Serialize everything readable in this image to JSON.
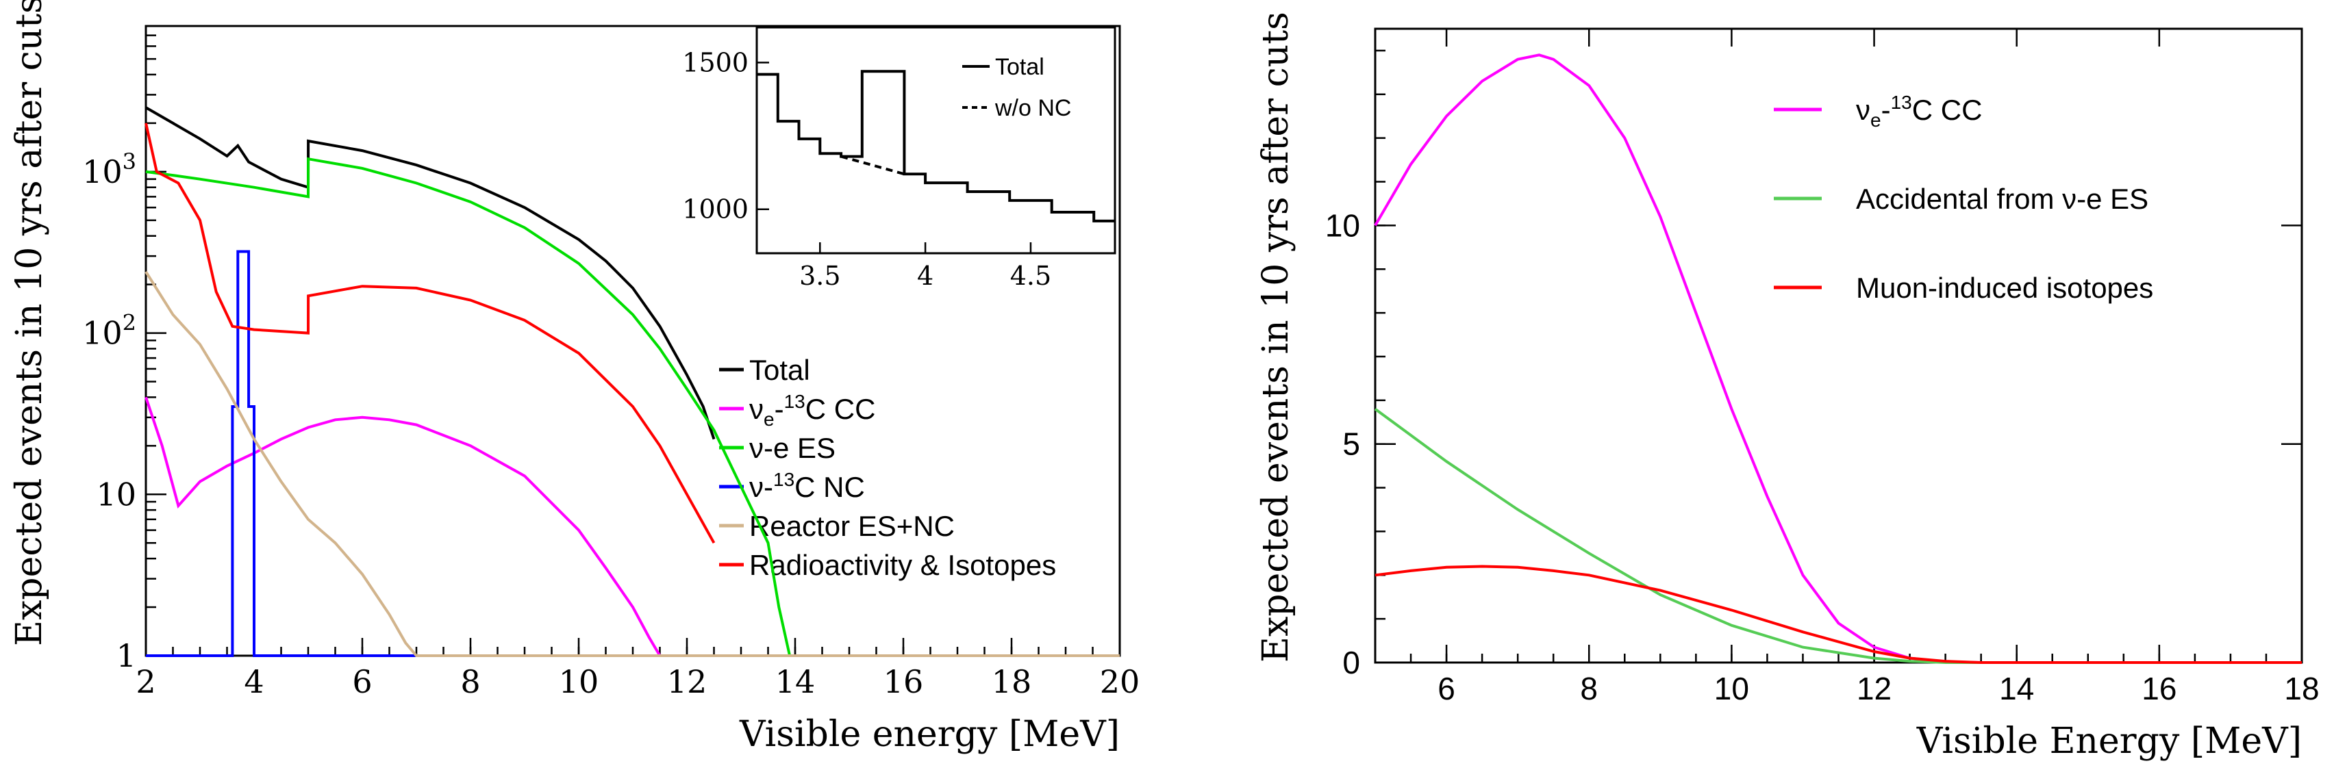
{
  "chart_data": [
    {
      "type": "line",
      "panel": "left",
      "title": "",
      "xlabel": "Visible energy [MeV]",
      "ylabel": "Expected events in 10 yrs after cuts",
      "xlim": [
        2,
        20
      ],
      "ylim": [
        1,
        8000
      ],
      "yscale": "log",
      "x_ticks": [
        2,
        4,
        6,
        8,
        10,
        12,
        14,
        16,
        18,
        20
      ],
      "y_ticks": [
        {
          "value": 1,
          "label": "1"
        },
        {
          "value": 10,
          "label": "10"
        },
        {
          "value": 100,
          "label": "10",
          "exp": "2"
        },
        {
          "value": 1000,
          "label": "10",
          "exp": "3"
        }
      ],
      "legend_position": "center-right",
      "series": [
        {
          "name": "Total",
          "color": "#000000",
          "legend": [
            "Total"
          ],
          "x": [
            2.0,
            2.5,
            3.0,
            3.5,
            3.7,
            3.9,
            4.5,
            5.0,
            5.001,
            6.0,
            7.0,
            8.0,
            9.0,
            10.0,
            10.5,
            11.0,
            11.5,
            12.0,
            12.3,
            12.5
          ],
          "y": [
            2500,
            2000,
            1600,
            1250,
            1450,
            1150,
            900,
            800,
            1550,
            1350,
            1100,
            850,
            600,
            380,
            280,
            190,
            110,
            55,
            35,
            22
          ]
        },
        {
          "name": "ve-13C CC",
          "color": "#ff00ff",
          "legend": [
            "ν",
            "e",
            "-",
            "13",
            "C CC"
          ],
          "x": [
            2.0,
            2.3,
            2.6,
            3.0,
            3.5,
            4.0,
            4.5,
            5.0,
            5.5,
            6.0,
            6.5,
            7.0,
            8.0,
            9.0,
            10.0,
            10.5,
            11.0,
            11.3,
            11.5
          ],
          "y": [
            40,
            20,
            8.5,
            12,
            15,
            18,
            22,
            26,
            29,
            30,
            29,
            27,
            20,
            13,
            6,
            3.5,
            2,
            1.3,
            1
          ]
        },
        {
          "name": "v-e ES",
          "color": "#00dd00",
          "legend": [
            "ν-e ES"
          ],
          "x": [
            2.0,
            2.5,
            3.0,
            4.0,
            5.0,
            5.001,
            6.0,
            7.0,
            8.0,
            9.0,
            10.0,
            11.0,
            11.5,
            12.0,
            12.5,
            13.5,
            13.7,
            13.9
          ],
          "y": [
            1000,
            950,
            900,
            800,
            700,
            1200,
            1050,
            850,
            650,
            450,
            270,
            130,
            80,
            45,
            25,
            5,
            2,
            1
          ]
        },
        {
          "name": "v-13C NC",
          "color": "#0000ff",
          "legend": [
            "ν-",
            "13",
            "C NC"
          ],
          "x": [
            2.0,
            3.6,
            3.6,
            3.7,
            3.7,
            3.9,
            3.9,
            4.0,
            4.0,
            20.0
          ],
          "y": [
            1,
            1,
            35,
            35,
            320,
            320,
            35,
            35,
            1,
            1
          ]
        },
        {
          "name": "Reactor ES+NC",
          "color": "#d2b48c",
          "legend": [
            "Reactor ES+NC"
          ],
          "x": [
            2.0,
            2.5,
            3.0,
            3.5,
            4.0,
            4.5,
            5.0,
            5.5,
            6.0,
            6.5,
            6.8,
            7.0,
            20.0
          ],
          "y": [
            240,
            130,
            85,
            45,
            22,
            12,
            7,
            5,
            3.2,
            1.8,
            1.2,
            1,
            1
          ]
        },
        {
          "name": "Radioactivity & Isotopes",
          "color": "#ff0000",
          "legend": [
            "Radioactivity & Isotopes"
          ],
          "x": [
            2.0,
            2.2,
            2.6,
            3.0,
            3.3,
            3.6,
            4.0,
            5.0,
            5.001,
            6.0,
            7.0,
            8.0,
            9.0,
            10.0,
            11.0,
            11.5,
            12.0,
            12.5
          ],
          "y": [
            2000,
            1000,
            850,
            500,
            180,
            110,
            105,
            100,
            170,
            195,
            190,
            160,
            120,
            75,
            35,
            20,
            10,
            5
          ]
        }
      ],
      "inset": {
        "xlim": [
          3.2,
          4.9
        ],
        "ylim": [
          850,
          1620
        ],
        "x_ticks": [
          {
            "value": 3.5,
            "label": "3.5"
          },
          {
            "value": 4.0,
            "label": "4"
          },
          {
            "value": 4.5,
            "label": "4.5"
          }
        ],
        "y_ticks": [
          {
            "value": 1000,
            "label": "1000"
          },
          {
            "value": 1500,
            "label": "1500"
          }
        ],
        "legend_position": "top-right",
        "series": [
          {
            "name": "Total",
            "style": "solid",
            "x": [
              3.2,
              3.3,
              3.3,
              3.4,
              3.4,
              3.5,
              3.5,
              3.6,
              3.6,
              3.7,
              3.7,
              3.9,
              3.9,
              4.0,
              4.0,
              4.2,
              4.2,
              4.4,
              4.4,
              4.6,
              4.6,
              4.8,
              4.8,
              4.9
            ],
            "y": [
              1460,
              1460,
              1300,
              1300,
              1240,
              1240,
              1190,
              1190,
              1180,
              1180,
              1470,
              1470,
              1120,
              1120,
              1090,
              1090,
              1060,
              1060,
              1030,
              1030,
              990,
              990,
              960,
              960
            ]
          },
          {
            "name": "w/o NC",
            "style": "dashed",
            "x": [
              3.6,
              3.7,
              3.8,
              3.9
            ],
            "y": [
              1180,
              1160,
              1140,
              1120
            ]
          }
        ]
      }
    },
    {
      "type": "line",
      "panel": "right",
      "title": "",
      "xlabel": "Visible Energy [MeV]",
      "ylabel": "Expected events in 10 yrs after cuts",
      "xlim": [
        5,
        18
      ],
      "ylim": [
        0,
        14.5
      ],
      "x_ticks": [
        6,
        8,
        10,
        12,
        14,
        16,
        18
      ],
      "y_ticks": [
        0,
        5,
        10
      ],
      "legend_position": "top-right",
      "series": [
        {
          "name": "ve-13C CC",
          "color": "#ff00ff",
          "legend": [
            "ν",
            "e",
            "-",
            "13",
            "C CC"
          ],
          "x": [
            5.0,
            5.5,
            6.0,
            6.5,
            7.0,
            7.3,
            7.5,
            8.0,
            8.5,
            9.0,
            9.5,
            10.0,
            10.5,
            11.0,
            11.5,
            12.0,
            12.5,
            13.0,
            13.5,
            18.0
          ],
          "y": [
            10,
            11.4,
            12.5,
            13.3,
            13.8,
            13.9,
            13.8,
            13.2,
            12.0,
            10.2,
            8.0,
            5.8,
            3.8,
            2.0,
            0.9,
            0.35,
            0.1,
            0.02,
            0,
            0
          ]
        },
        {
          "name": "Accidental from v-e ES",
          "color": "#55cc55",
          "legend": [
            "Accidental from ν-e ES"
          ],
          "x": [
            5.0,
            6.0,
            7.0,
            8.0,
            9.0,
            10.0,
            11.0,
            12.0,
            12.5,
            13.0,
            18.0
          ],
          "y": [
            5.8,
            4.6,
            3.5,
            2.5,
            1.55,
            0.85,
            0.35,
            0.1,
            0.03,
            0,
            0
          ]
        },
        {
          "name": "Muon-induced isotopes",
          "color": "#ff0000",
          "legend": [
            "Muon-induced isotopes"
          ],
          "x": [
            5.0,
            5.5,
            6.0,
            6.5,
            7.0,
            7.5,
            8.0,
            9.0,
            10.0,
            11.0,
            12.0,
            12.5,
            13.0,
            13.5,
            18.0
          ],
          "y": [
            2.0,
            2.1,
            2.18,
            2.2,
            2.18,
            2.1,
            2.0,
            1.65,
            1.2,
            0.7,
            0.25,
            0.1,
            0.03,
            0,
            0
          ]
        }
      ]
    }
  ]
}
